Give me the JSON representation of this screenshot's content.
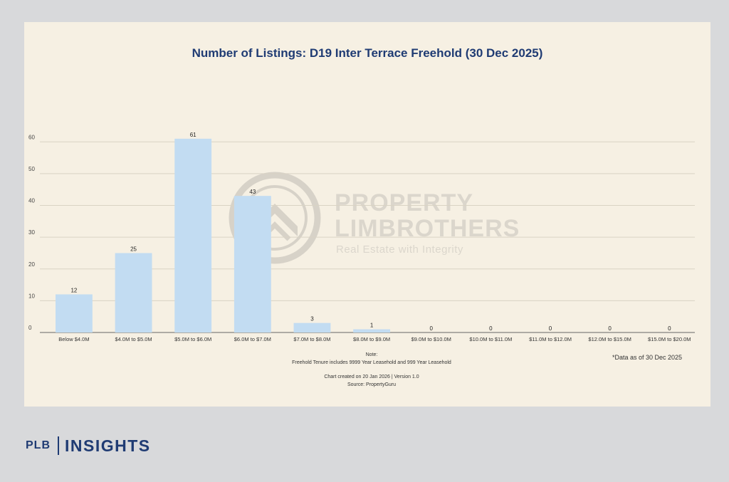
{
  "chart_data": {
    "type": "bar",
    "title": "Number of Listings: D19 Inter Terrace Freehold (30 Dec 2025)",
    "categories": [
      "Below $4.0M",
      "$4.0M to $5.0M",
      "$5.0M to $6.0M",
      "$6.0M to $7.0M",
      "$7.0M to $8.0M",
      "$8.0M to $9.0M",
      "$9.0M to $10.0M",
      "$10.0M to $11.0M",
      "$11.0M to $12.0M",
      "$12.0M to $15.0M",
      "$15.0M to $20.0M"
    ],
    "values": [
      12,
      25,
      61,
      43,
      3,
      1,
      0,
      0,
      0,
      0,
      0
    ],
    "yticks": [
      0,
      10,
      20,
      30,
      40,
      50,
      60
    ],
    "ylim": [
      0,
      65
    ],
    "grid": true,
    "bar_color": "#c2dcf2",
    "data_labels": true
  },
  "watermark": {
    "line1": "PROPERTY",
    "line2": "LIMBROTHERS",
    "tagline": "Real Estate with Integrity"
  },
  "footer": {
    "note_heading": "Note:",
    "note_text": "Freehold Tenure includes 9999 Year Leasehold and 999 Year Leasehold",
    "created": "Chart created on 20 Jan 2026 | Version 1.0",
    "source": "Source: PropertyGuru",
    "data_asof": "*Data as of 30 Dec 2025"
  },
  "brand": {
    "left": "PLB",
    "right": "INSIGHTS",
    "color": "#1f3b73"
  }
}
